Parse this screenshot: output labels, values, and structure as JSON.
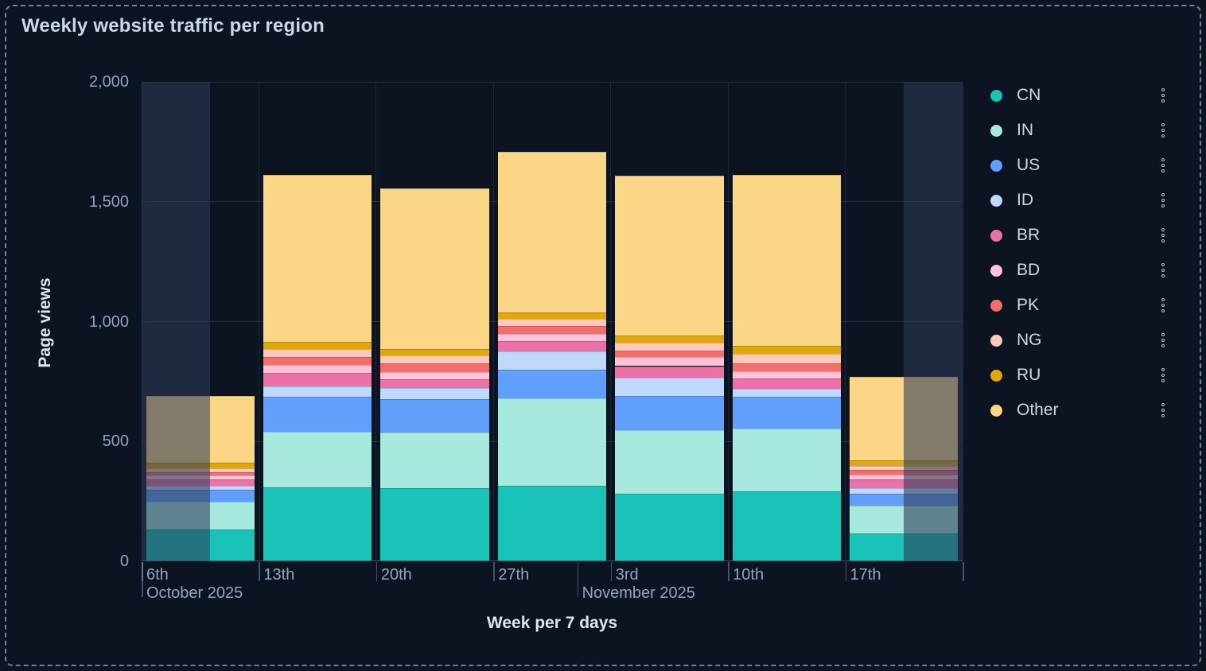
{
  "page": {
    "title": "Weekly website traffic per region"
  },
  "chart_data": {
    "type": "bar",
    "stacked": true,
    "title": "Weekly website traffic per region",
    "xlabel": "Week per 7 days",
    "ylabel": "Page views",
    "ylim": [
      0,
      2000
    ],
    "grid": true,
    "legend_position": "right",
    "y_ticks": [
      {
        "label": "0",
        "value": 0
      },
      {
        "label": "500",
        "value": 500
      },
      {
        "label": "1,000",
        "value": 1000
      },
      {
        "label": "1,500",
        "value": 1500
      },
      {
        "label": "2,000",
        "value": 2000
      }
    ],
    "categories": [
      "6th",
      "13th",
      "20th",
      "27th",
      "3rd",
      "10th",
      "17th"
    ],
    "month_labels": [
      {
        "text": "October 2025",
        "column": 0,
        "offset_days": 0
      },
      {
        "text": "November 2025",
        "column": 4,
        "offset_days": -2
      }
    ],
    "series": [
      {
        "name": "CN",
        "color": "#19c3b8",
        "values": [
          128,
          306,
          302,
          311,
          278,
          287,
          112
        ]
      },
      {
        "name": "IN",
        "color": "#a7e9de",
        "values": [
          117,
          233,
          231,
          366,
          266,
          263,
          117
        ]
      },
      {
        "name": "US",
        "color": "#609ffc",
        "values": [
          50,
          145,
          139,
          119,
          142,
          133,
          50
        ]
      },
      {
        "name": "ID",
        "color": "#bed9fc",
        "values": [
          17,
          44,
          48,
          75,
          78,
          33,
          24
        ]
      },
      {
        "name": "BR",
        "color": "#ed70a9",
        "values": [
          28,
          56,
          35,
          45,
          47,
          44,
          37
        ]
      },
      {
        "name": "BD",
        "color": "#fdc3d9",
        "values": [
          15,
          33,
          31,
          30,
          39,
          28,
          17
        ]
      },
      {
        "name": "PK",
        "color": "#f56e6b",
        "values": [
          13,
          33,
          35,
          31,
          25,
          36,
          20
        ]
      },
      {
        "name": "NG",
        "color": "#fec9bd",
        "values": [
          17,
          33,
          36,
          33,
          33,
          37,
          17
        ]
      },
      {
        "name": "RU",
        "color": "#e0a80a",
        "values": [
          22,
          28,
          26,
          24,
          30,
          33,
          25
        ]
      },
      {
        "name": "Other",
        "color": "#fbd687",
        "values": [
          278,
          699,
          669,
          672,
          669,
          714,
          346
        ]
      }
    ],
    "partial_week_overlays": [
      {
        "column": 0,
        "side": "left",
        "fraction": 0.58
      },
      {
        "column": 6,
        "side": "right",
        "fraction": 0.5
      }
    ]
  },
  "legend": {
    "menu_icon": "kebab-menu-icon"
  }
}
